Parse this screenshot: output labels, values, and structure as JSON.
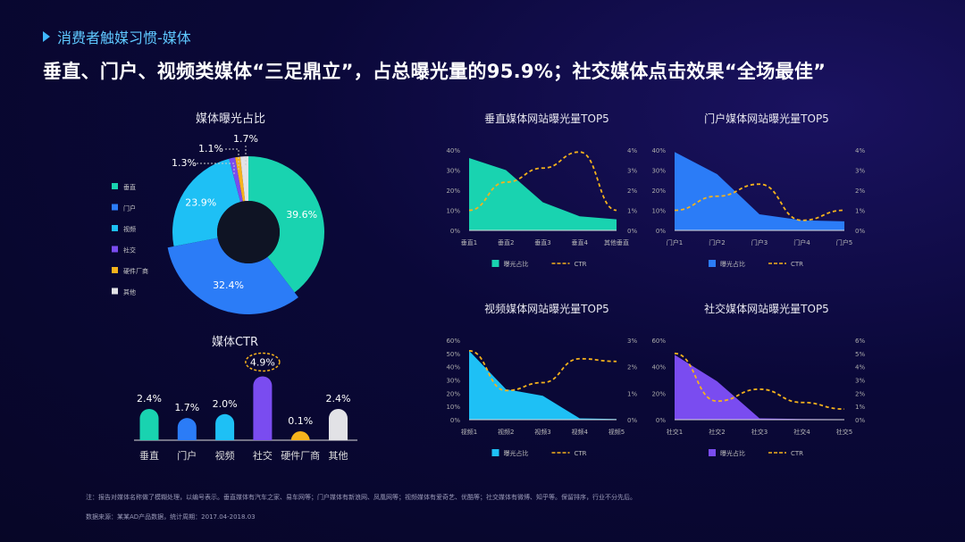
{
  "section_title": "消费者触媒习惯-媒体",
  "headline": "垂直、门户、视频类媒体“三足鼎立”，占总曝光量的95.9%；社交媒体点击效果“全场最佳”",
  "note": "注：报告对媒体名称做了模糊处理，以编号表示。垂直媒体有汽车之家、易车网等；门户媒体有新浪网、凤凰网等；视频媒体有爱奇艺、优酷等；社交媒体有微博、知乎等。保留排序，行业不分先后。",
  "source": "数据来源：某某AD产品数据，统计周期：2017.04-2018.03",
  "chart_data": [
    {
      "id": "donut",
      "type": "pie",
      "title": "媒体曝光占比",
      "categories": [
        "垂直",
        "门户",
        "视频",
        "社交",
        "硬件厂商",
        "其他"
      ],
      "values": [
        39.6,
        32.4,
        23.9,
        1.3,
        1.1,
        1.7
      ],
      "labels": [
        "39.6%",
        "32.4%",
        "23.9%",
        "1.3%",
        "1.1%",
        "1.7%"
      ],
      "colors": [
        "#19d3b0",
        "#2b7cf7",
        "#1ec0f5",
        "#7a4cf0",
        "#f5b21c",
        "#e2e2e6"
      ],
      "legend": "left"
    },
    {
      "id": "ctr",
      "type": "bar",
      "title": "媒体CTR",
      "categories": [
        "垂直",
        "门户",
        "视频",
        "社交",
        "硬件厂商",
        "其他"
      ],
      "values": [
        2.4,
        1.7,
        2.0,
        4.9,
        0.1,
        2.4
      ],
      "labels": [
        "2.4%",
        "1.7%",
        "2.0%",
        "4.9%",
        "0.1%",
        "2.4%"
      ],
      "colors": [
        "#19d3b0",
        "#2b7cf7",
        "#1ec0f5",
        "#7a4cf0",
        "#f5b21c",
        "#e2e2e6"
      ],
      "highlight": 3
    },
    {
      "id": "vertical",
      "type": "area",
      "title": "垂直媒体网站曝光量TOP5",
      "categories": [
        "垂直1",
        "垂直2",
        "垂直3",
        "垂直4",
        "其他垂直"
      ],
      "series": [
        {
          "name": "曝光占比",
          "values": [
            36,
            30,
            14,
            7,
            5.5
          ],
          "color": "#19d3b0"
        },
        {
          "name": "CTR",
          "values": [
            1.0,
            2.4,
            3.1,
            3.9,
            1.0
          ],
          "color": "#f5b21c",
          "axis": "right"
        }
      ],
      "ylim": [
        0,
        40
      ],
      "yticks": [
        "0%",
        "10%",
        "20%",
        "30%",
        "40%"
      ],
      "y2lim": [
        0,
        4
      ],
      "y2ticks": [
        "0%",
        "1%",
        "2%",
        "3%",
        "4%"
      ]
    },
    {
      "id": "portal",
      "type": "area",
      "title": "门户媒体网站曝光量TOP5",
      "categories": [
        "门户1",
        "门户2",
        "门户3",
        "门户4",
        "门户5"
      ],
      "series": [
        {
          "name": "曝光占比",
          "values": [
            39,
            28,
            8,
            5,
            4.5
          ],
          "color": "#2b7cf7"
        },
        {
          "name": "CTR",
          "values": [
            1.0,
            1.7,
            2.3,
            0.5,
            1.0
          ],
          "color": "#f5b21c",
          "axis": "right"
        }
      ],
      "ylim": [
        0,
        40
      ],
      "yticks": [
        "0%",
        "10%",
        "20%",
        "30%",
        "40%"
      ],
      "y2lim": [
        0,
        4
      ],
      "y2ticks": [
        "0%",
        "1%",
        "2%",
        "3%",
        "4%"
      ]
    },
    {
      "id": "video",
      "type": "area",
      "title": "视频媒体网站曝光量TOP5",
      "categories": [
        "视频1",
        "视频2",
        "视频3",
        "视频4",
        "视频5"
      ],
      "series": [
        {
          "name": "曝光占比",
          "values": [
            52,
            23,
            18,
            1,
            0.5
          ],
          "color": "#1ec0f5"
        },
        {
          "name": "CTR",
          "values": [
            2.6,
            1.1,
            1.4,
            2.3,
            2.2
          ],
          "color": "#f5b21c",
          "axis": "right"
        }
      ],
      "ylim": [
        0,
        60
      ],
      "yticks": [
        "0%",
        "10%",
        "20%",
        "30%",
        "40%",
        "50%",
        "60%"
      ],
      "y2lim": [
        0,
        3
      ],
      "y2ticks": [
        "0%",
        "1%",
        "2%",
        "3%"
      ]
    },
    {
      "id": "social",
      "type": "area",
      "title": "社交媒体网站曝光量TOP5",
      "categories": [
        "社交1",
        "社交2",
        "社交3",
        "社交4",
        "社交5"
      ],
      "series": [
        {
          "name": "曝光占比",
          "values": [
            49,
            29,
            1,
            0.5,
            0.3
          ],
          "color": "#7a4cf0"
        },
        {
          "name": "CTR",
          "values": [
            5.0,
            1.4,
            2.3,
            1.3,
            0.8
          ],
          "color": "#f5b21c",
          "axis": "right"
        }
      ],
      "ylim": [
        0,
        60
      ],
      "yticks": [
        "0%",
        "20%",
        "40%",
        "60%"
      ],
      "y2lim": [
        0,
        6
      ],
      "y2ticks": [
        "0%",
        "1%",
        "2%",
        "3%",
        "4%",
        "5%",
        "6%"
      ]
    }
  ]
}
